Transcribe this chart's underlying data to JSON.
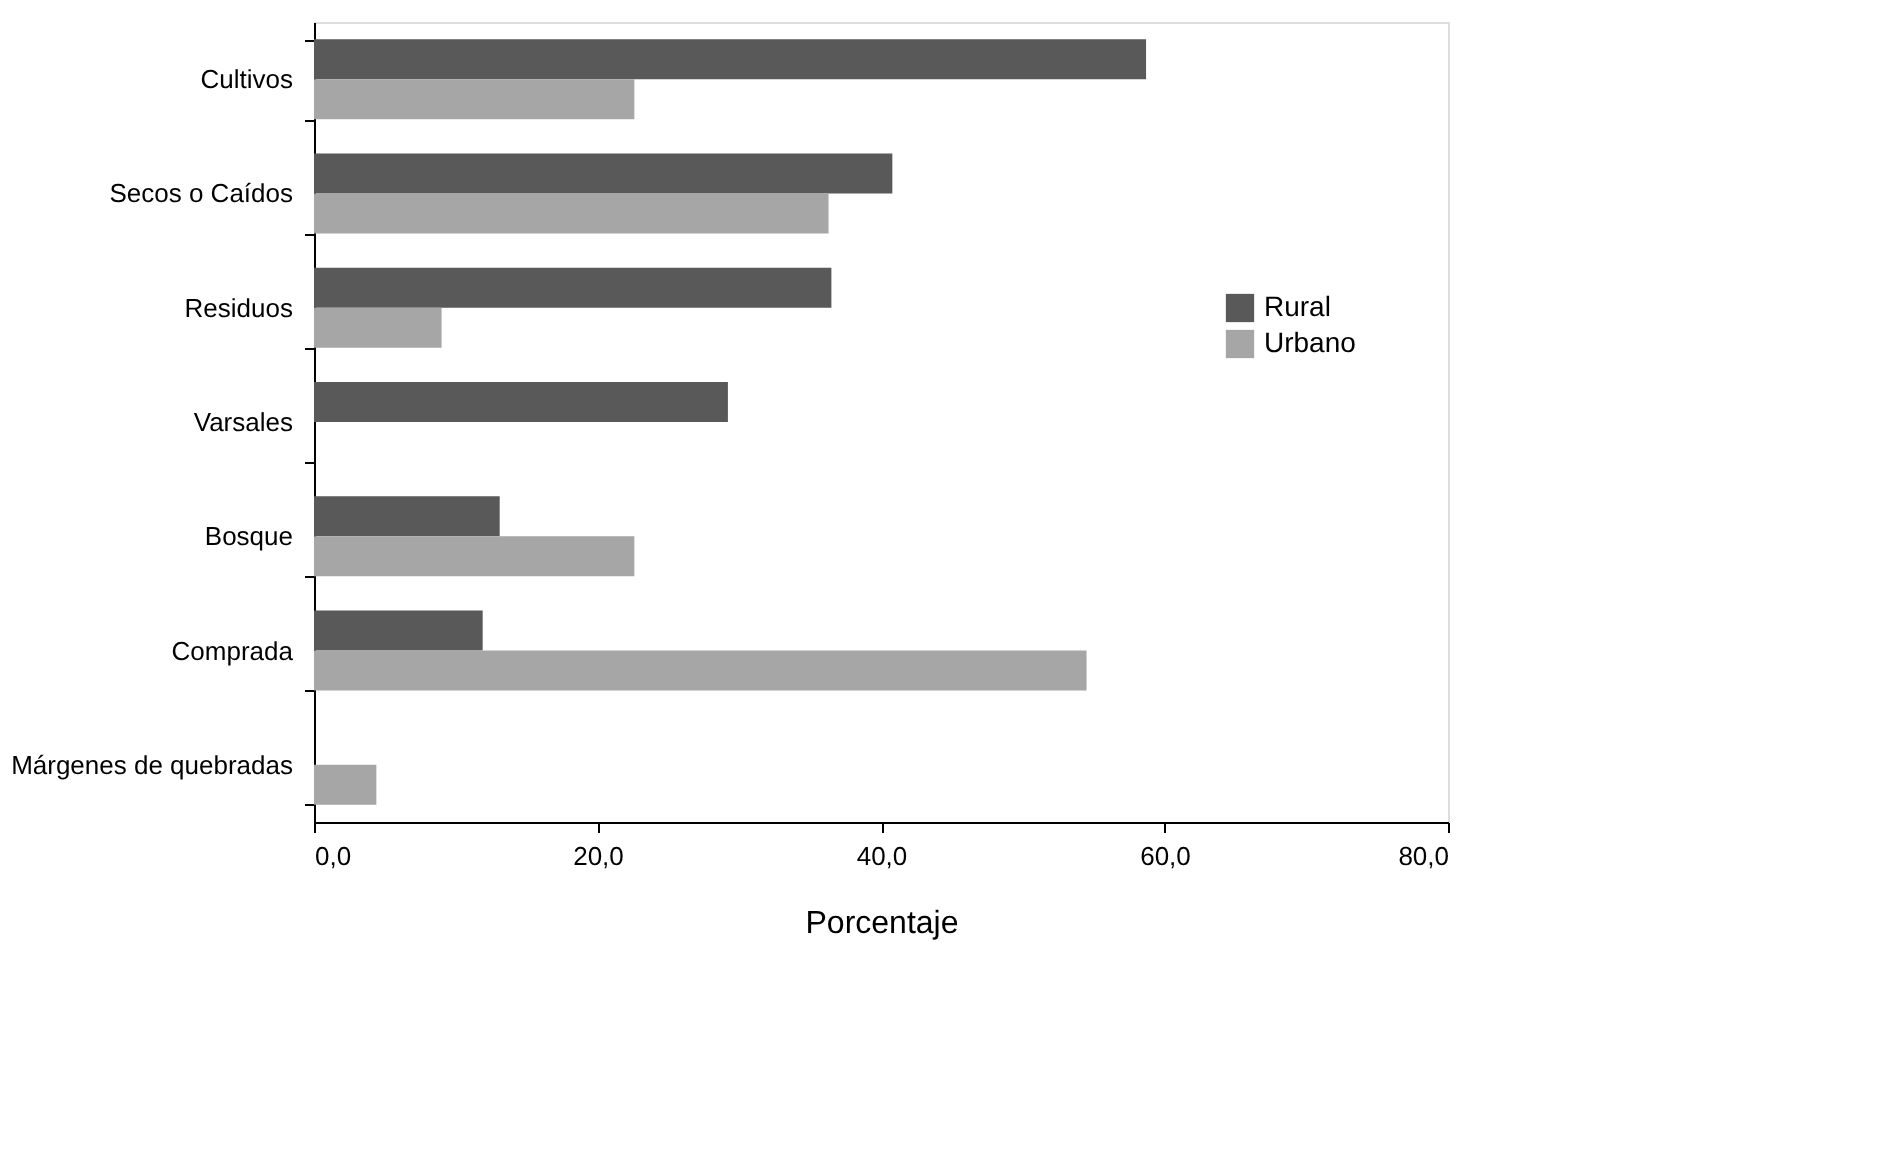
{
  "chart_data": {
    "type": "bar",
    "orientation": "horizontal",
    "categories": [
      "Cultivos",
      "Secos o Caídos",
      "Residuos",
      "Varsales",
      "Bosque",
      "Comprada",
      "Márgenes de quebradas"
    ],
    "series": [
      {
        "name": "Rural",
        "color": "#595959",
        "values": [
          58.7,
          40.8,
          36.5,
          29.2,
          13.1,
          11.9,
          null
        ]
      },
      {
        "name": "Urbano",
        "color": "#a6a6a6",
        "values": [
          22.6,
          36.3,
          9.0,
          null,
          22.6,
          54.5,
          4.4
        ]
      }
    ],
    "xlabel": "Porcentaje",
    "xlim": [
      0,
      80
    ],
    "xticks": [
      {
        "value": 0,
        "label": "0,0"
      },
      {
        "value": 20,
        "label": "20,0"
      },
      {
        "value": 40,
        "label": "40,0"
      },
      {
        "value": 60,
        "label": "60,0"
      },
      {
        "value": 80,
        "label": "80,0"
      }
    ],
    "legend": "right",
    "grid": false
  }
}
